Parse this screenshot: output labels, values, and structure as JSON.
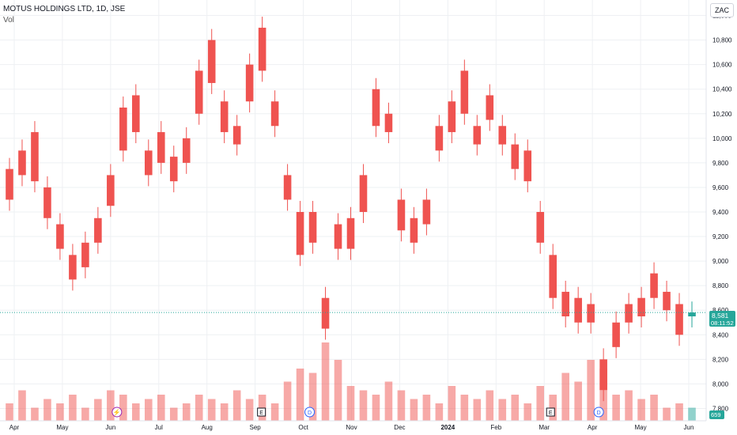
{
  "header": {
    "symbol": "MOTUS HOLDINGS LTD, 1D, JSE",
    "volume_label": "Vol",
    "currency": "ZAC"
  },
  "price_tag": {
    "last": "8,581",
    "countdown": "08:11:52",
    "volume_last": "659"
  },
  "colors": {
    "up": "#26a69a",
    "down": "#ef5350",
    "grid": "#eef0f3",
    "axis_text": "#131722"
  },
  "markers": [
    {
      "type": "E",
      "month": "Sep"
    },
    {
      "type": "D",
      "month": "Oct"
    },
    {
      "type": "E",
      "month": "Mar"
    },
    {
      "type": "D",
      "month": "Apr"
    },
    {
      "type": "lightning",
      "month": "Jun"
    }
  ],
  "chart_data": {
    "type": "candlestick",
    "title": "MOTUS HOLDINGS LTD, 1D, JSE",
    "currency": "ZAC",
    "x_tick_labels": [
      "Apr",
      "May",
      "Jun",
      "Jul",
      "Aug",
      "Sep",
      "Oct",
      "Nov",
      "Dec",
      "2024",
      "Feb",
      "Mar",
      "Apr",
      "May",
      "Jun"
    ],
    "y_ticks": [
      7800,
      8000,
      8200,
      8400,
      8600,
      8800,
      9000,
      9200,
      9400,
      9600,
      9800,
      10000,
      10200,
      10400,
      10600,
      10800,
      11000
    ],
    "ylim": [
      7700,
      11100
    ],
    "grid": true,
    "last_price": 8581,
    "series": [
      {
        "name": "Price",
        "points": [
          [
            "Apr",
            9750,
            9500
          ],
          [
            "Apr",
            9900,
            9700
          ],
          [
            "Apr",
            10050,
            9650
          ],
          [
            "Apr",
            9600,
            9350
          ],
          [
            "May",
            9300,
            9100
          ],
          [
            "May",
            9050,
            8850
          ],
          [
            "May",
            9150,
            8950
          ],
          [
            "May",
            9350,
            9150
          ],
          [
            "Jun",
            9700,
            9450
          ],
          [
            "Jun",
            10250,
            9900
          ],
          [
            "Jun",
            10350,
            10050
          ],
          [
            "Jun",
            9900,
            9700
          ],
          [
            "Jul",
            10050,
            9800
          ],
          [
            "Jul",
            9850,
            9650
          ],
          [
            "Jul",
            10000,
            9800
          ],
          [
            "Aug",
            10550,
            10200
          ],
          [
            "Aug",
            10800,
            10450
          ],
          [
            "Aug",
            10300,
            10050
          ],
          [
            "Aug",
            10100,
            9950
          ],
          [
            "Sep",
            10600,
            10300
          ],
          [
            "Sep",
            10900,
            10550
          ],
          [
            "Sep",
            10300,
            10100
          ],
          [
            "Sep",
            9700,
            9500
          ],
          [
            "Oct",
            9400,
            9050
          ],
          [
            "Oct",
            9400,
            9150
          ],
          [
            "Oct",
            8700,
            8450
          ],
          [
            "Oct",
            9300,
            9100
          ],
          [
            "Nov",
            9350,
            9100
          ],
          [
            "Nov",
            9700,
            9400
          ],
          [
            "Nov",
            10400,
            10100
          ],
          [
            "Nov",
            10200,
            10050
          ],
          [
            "Dec",
            9500,
            9250
          ],
          [
            "Dec",
            9350,
            9150
          ],
          [
            "Dec",
            9500,
            9300
          ],
          [
            "Dec",
            10100,
            9900
          ],
          [
            "2024",
            10300,
            10050
          ],
          [
            "2024",
            10550,
            10200
          ],
          [
            "2024",
            10100,
            9950
          ],
          [
            "2024",
            10350,
            10150
          ],
          [
            "Feb",
            10100,
            9950
          ],
          [
            "Feb",
            9950,
            9750
          ],
          [
            "Feb",
            9900,
            9650
          ],
          [
            "Mar",
            9400,
            9150
          ],
          [
            "Mar",
            9050,
            8700
          ],
          [
            "Mar",
            8750,
            8550
          ],
          [
            "Apr",
            8700,
            8500
          ],
          [
            "Apr",
            8650,
            8500
          ],
          [
            "Apr",
            8200,
            7950
          ],
          [
            "Apr",
            8500,
            8300
          ],
          [
            "May",
            8650,
            8500
          ],
          [
            "May",
            8700,
            8550
          ],
          [
            "May",
            8900,
            8700
          ],
          [
            "May",
            8750,
            8600
          ],
          [
            "Jun",
            8650,
            8400
          ],
          [
            "Jun",
            8550,
            8581
          ]
        ]
      },
      {
        "name": "Vol",
        "relative_heights": [
          0.2,
          0.35,
          0.15,
          0.25,
          0.2,
          0.3,
          0.15,
          0.25,
          0.35,
          0.3,
          0.2,
          0.25,
          0.3,
          0.15,
          0.2,
          0.3,
          0.25,
          0.2,
          0.35,
          0.25,
          0.3,
          0.2,
          0.45,
          0.6,
          0.55,
          0.9,
          0.7,
          0.4,
          0.35,
          0.3,
          0.45,
          0.35,
          0.25,
          0.3,
          0.2,
          0.4,
          0.3,
          0.25,
          0.35,
          0.25,
          0.3,
          0.2,
          0.4,
          0.3,
          0.55,
          0.45,
          0.7,
          0.6,
          0.3,
          0.35,
          0.25,
          0.3,
          0.15,
          0.2,
          0.15
        ]
      }
    ]
  }
}
